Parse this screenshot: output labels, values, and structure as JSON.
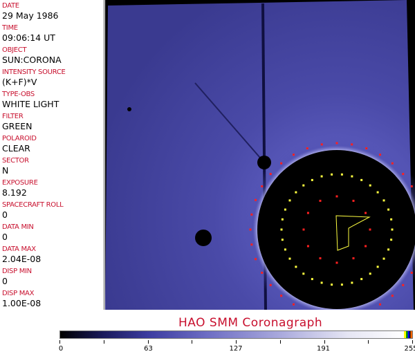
{
  "fields": [
    {
      "label": "DATE",
      "value": "29 May 1986"
    },
    {
      "label": "TIME",
      "value": "09:06:14 UT"
    },
    {
      "label": "OBJECT",
      "value": "SUN:CORONA"
    },
    {
      "label": "INTENSITY SOURCE",
      "value": "(K+F)*V"
    },
    {
      "label": "TYPE-OBS",
      "value": "WHITE LIGHT"
    },
    {
      "label": "FILTER",
      "value": "GREEN"
    },
    {
      "label": "POLAROID",
      "value": "CLEAR"
    },
    {
      "label": "SECTOR",
      "value": "N"
    },
    {
      "label": "EXPOSURE",
      "value": "8.192"
    },
    {
      "label": "SPACECRAFT ROLL",
      "value": "0"
    },
    {
      "label": "DATA MIN",
      "value": "0"
    },
    {
      "label": "DATA MAX",
      "value": "2.04E-08"
    },
    {
      "label": "DISP MIN",
      "value": "0"
    },
    {
      "label": "DISP MAX",
      "value": "1.00E-08"
    }
  ],
  "title": "HAO  SMM Coronagraph",
  "colorbar": {
    "ticks": [
      "0",
      "63",
      "127",
      "191",
      "255"
    ],
    "range": [
      0,
      255
    ]
  },
  "colors": {
    "label": "#c8102e",
    "background_field": "#5050b0",
    "occulter": "#000000",
    "markers_red": "#ff2020",
    "markers_yellow": "#ffff40"
  }
}
